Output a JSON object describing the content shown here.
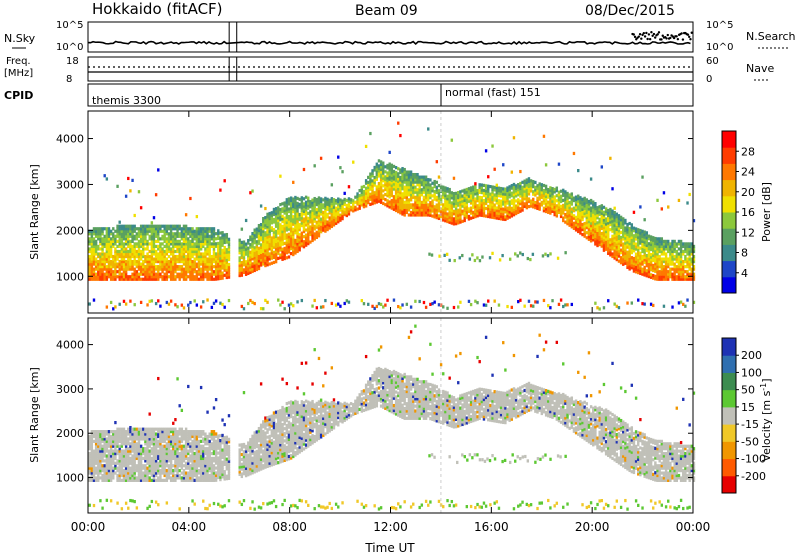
{
  "header": {
    "station": "Hokkaido (fitACF)",
    "beam": "Beam 09",
    "date": "08/Dec/2015"
  },
  "aux_panels": {
    "nsky_label": "N.Sky",
    "nsky_ticks": [
      "10^5",
      "10^0"
    ],
    "nsearch_label": "N.Search",
    "freq_label_line1": "Freq.",
    "freq_label_line2": "[MHz]",
    "freq_ticks": [
      "18",
      "8"
    ],
    "nave_label": "Nave",
    "nave_ticks": [
      "60",
      "0"
    ],
    "cpid_label": "CPID",
    "cpid_segments": [
      {
        "name": "themis 3300",
        "start_hour": 0
      },
      {
        "name": "normal (fast) 151",
        "start_hour": 14.0
      }
    ]
  },
  "chart_data": [
    {
      "type": "heatmap",
      "panel": "power",
      "ylabel": "Slant Range [km]",
      "y_ticks": [
        1000,
        2000,
        3000,
        4000
      ],
      "ylim": [
        200,
        4600
      ],
      "x_ticks": [
        "00:00",
        "04:00",
        "08:00",
        "12:00",
        "16:00",
        "20:00",
        "00:00"
      ],
      "xlim_hours": [
        0,
        24
      ],
      "colorbar": {
        "label": "Power [dB]",
        "ticks": [
          "4",
          "8",
          "12",
          "16",
          "20",
          "24",
          "28"
        ],
        "colors": [
          "#0000e6",
          "#1e46c8",
          "#3b8a8a",
          "#5aa060",
          "#8cc83c",
          "#f0e000",
          "#f0b400",
          "#ff7800",
          "#ff3c00",
          "#ff0000"
        ]
      },
      "data_gap_hours": [
        5.6,
        5.9
      ],
      "mean_echo_range_km": [
        [
          0.1,
          900,
          2000
        ],
        [
          1.0,
          900,
          2050
        ],
        [
          2.0,
          900,
          2100
        ],
        [
          3.0,
          900,
          2100
        ],
        [
          4.0,
          900,
          2050
        ],
        [
          5.0,
          900,
          2000
        ],
        [
          6.2,
          1000,
          1700
        ],
        [
          7.0,
          1200,
          2300
        ],
        [
          8.0,
          1400,
          2700
        ],
        [
          10.5,
          2400,
          2650
        ],
        [
          11.5,
          2600,
          3500
        ],
        [
          12.5,
          2300,
          3300
        ],
        [
          13.5,
          2300,
          3100
        ],
        [
          14.5,
          2100,
          2800
        ],
        [
          15.5,
          2300,
          3000
        ],
        [
          16.5,
          2200,
          2900
        ],
        [
          17.5,
          2500,
          3100
        ],
        [
          18.5,
          2300,
          2900
        ],
        [
          19.5,
          1900,
          2700
        ],
        [
          20.5,
          1500,
          2500
        ],
        [
          21.5,
          1100,
          2100
        ],
        [
          22.5,
          900,
          1800
        ],
        [
          23.9,
          900,
          1700
        ]
      ]
    },
    {
      "type": "heatmap",
      "panel": "velocity",
      "ylabel": "Slant Range [km]",
      "y_ticks": [
        1000,
        2000,
        3000,
        4000
      ],
      "ylim": [
        200,
        4600
      ],
      "x_ticks": [
        "00:00",
        "04:00",
        "08:00",
        "12:00",
        "16:00",
        "20:00",
        "00:00"
      ],
      "xlim_hours": [
        0,
        24
      ],
      "xlabel": "Time UT",
      "colorbar": {
        "label": "Velocity [m s",
        "label_sup": "-1",
        "label_close": "]",
        "ticks": [
          "200",
          "100",
          "50",
          "15",
          "-15",
          "-50",
          "-100",
          "-200"
        ],
        "colors": [
          "#1e32b4",
          "#2f6fb0",
          "#3c8c50",
          "#5cc832",
          "#c0c0b8",
          "#f0c828",
          "#f09600",
          "#ff5a00",
          "#e60000"
        ]
      },
      "ground_scatter_color": "#c0c0b8"
    }
  ]
}
